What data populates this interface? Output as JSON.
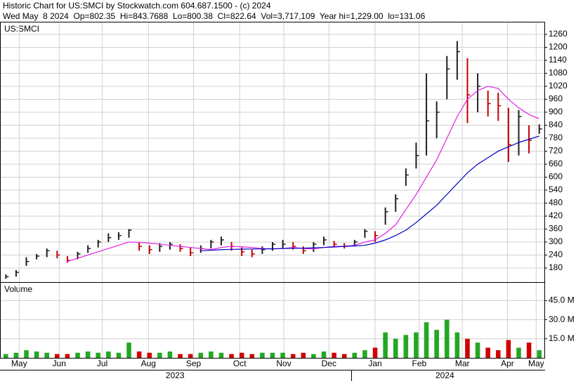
{
  "header": {
    "title": "Historic Chart for US:SMCI by Stockwatch.com 604.687.1500 - (c) 2024",
    "quote": "Wed May  8 2024  Op=802.35  Hi=843.7688  Lo=800.38  Cl=822.64  Vol=3,717,109  Year hi=1,229.00  lo=131.06"
  },
  "x_axis": {
    "xlim": [
      0,
      53
    ],
    "xticks": [
      {
        "value": 1.8,
        "label": "May"
      },
      {
        "value": 5.7,
        "label": "Jun"
      },
      {
        "value": 9.9,
        "label": "Jul"
      },
      {
        "value": 14.4,
        "label": "Aug"
      },
      {
        "value": 18.8,
        "label": "Sep"
      },
      {
        "value": 23.3,
        "label": "Oct"
      },
      {
        "value": 27.6,
        "label": "Nov"
      },
      {
        "value": 32,
        "label": "Dec"
      },
      {
        "value": 36.5,
        "label": "Jan"
      },
      {
        "value": 40.8,
        "label": "Feb"
      },
      {
        "value": 45,
        "label": "Mar"
      },
      {
        "value": 49.4,
        "label": "Apr"
      },
      {
        "value": 52.2,
        "label": "May"
      }
    ],
    "year_ticks": [
      {
        "value": 17,
        "label": "2023"
      },
      {
        "value": 43.3,
        "label": "2024"
      }
    ]
  },
  "chart_data": [
    {
      "type": "ohlc",
      "label": "US:SMCI",
      "ylim": [
        115,
        1315
      ],
      "yticks": [
        180,
        240,
        300,
        360,
        420,
        480,
        540,
        600,
        660,
        720,
        780,
        840,
        900,
        960,
        1020,
        1080,
        1140,
        1200,
        1260
      ],
      "grid": true,
      "up_color": "#202020",
      "down_color": "#c00000",
      "ma_short_color": "#e020e0",
      "ma_long_color": "#0000c0",
      "high": [
        150,
        170,
        230,
        245,
        270,
        260,
        235,
        255,
        285,
        310,
        340,
        345,
        360,
        300,
        285,
        295,
        300,
        290,
        275,
        285,
        310,
        325,
        300,
        275,
        265,
        280,
        300,
        310,
        300,
        280,
        300,
        325,
        305,
        295,
        310,
        360,
        350,
        460,
        520,
        640,
        760,
        1080,
        950,
        1160,
        1229,
        1150,
        1080,
        1000,
        990,
        920,
        910,
        840,
        844
      ],
      "low": [
        130,
        140,
        190,
        220,
        230,
        225,
        205,
        220,
        250,
        275,
        300,
        310,
        320,
        260,
        245,
        255,
        265,
        255,
        235,
        250,
        270,
        285,
        260,
        235,
        230,
        245,
        260,
        270,
        265,
        245,
        255,
        285,
        275,
        270,
        280,
        320,
        300,
        380,
        440,
        560,
        640,
        700,
        780,
        960,
        1050,
        850,
        900,
        880,
        860,
        670,
        700,
        710,
        800
      ],
      "close": [
        140,
        160,
        210,
        235,
        260,
        240,
        215,
        245,
        270,
        300,
        320,
        330,
        355,
        280,
        265,
        280,
        290,
        270,
        250,
        270,
        300,
        310,
        280,
        255,
        245,
        265,
        290,
        290,
        280,
        260,
        290,
        310,
        290,
        280,
        300,
        350,
        330,
        440,
        500,
        610,
        700,
        860,
        900,
        1100,
        1180,
        980,
        1020,
        940,
        930,
        750,
        880,
        770,
        823
      ],
      "ma_short": [
        null,
        null,
        null,
        null,
        null,
        null,
        210,
        225,
        240,
        255,
        270,
        285,
        300,
        298,
        295,
        290,
        285,
        280,
        275,
        270,
        265,
        275,
        280,
        278,
        275,
        270,
        268,
        270,
        275,
        270,
        268,
        275,
        280,
        280,
        285,
        300,
        310,
        340,
        380,
        450,
        520,
        600,
        680,
        780,
        880,
        960,
        1000,
        1020,
        1010,
        960,
        920,
        890,
        870
      ],
      "ma_long": [
        null,
        null,
        null,
        null,
        null,
        null,
        null,
        null,
        null,
        null,
        null,
        null,
        null,
        null,
        null,
        null,
        null,
        null,
        null,
        260,
        262,
        265,
        266,
        267,
        268,
        268,
        269,
        270,
        271,
        272,
        273,
        275,
        277,
        280,
        282,
        285,
        295,
        310,
        330,
        355,
        390,
        430,
        470,
        520,
        570,
        620,
        660,
        690,
        720,
        740,
        760,
        775,
        790
      ]
    },
    {
      "type": "volume",
      "label": "Volume",
      "ylim": [
        0,
        59
      ],
      "yticks": [
        {
          "value": 15,
          "label": "15.0 M"
        },
        {
          "value": 30,
          "label": "30.0 M"
        },
        {
          "value": 45,
          "label": "45.0 M"
        }
      ],
      "grid": true,
      "up_color": "#22a822",
      "down_color": "#d00000",
      "values": [
        3,
        4,
        6,
        5,
        4,
        3,
        3,
        4,
        5,
        4,
        5,
        4,
        12,
        5,
        4,
        4,
        5,
        3,
        3,
        4,
        5,
        4,
        3,
        4,
        3,
        4,
        4,
        4,
        3,
        4,
        3,
        5,
        4,
        3,
        4,
        6,
        8,
        20,
        15,
        18,
        20,
        28,
        22,
        30,
        20,
        15,
        12,
        8,
        6,
        14,
        8,
        12,
        6
      ]
    }
  ]
}
